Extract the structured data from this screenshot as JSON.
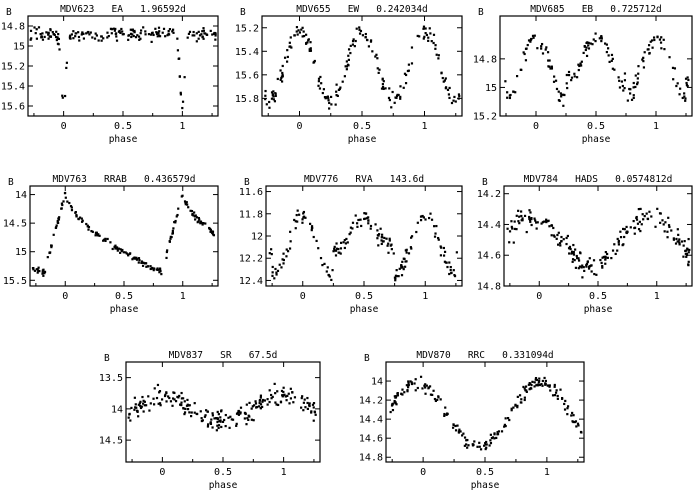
{
  "figure": {
    "xlabel": "phase",
    "ylabel": "B"
  },
  "chart_data": [
    {
      "type": "scatter",
      "title": "MDV623   EA   1.96592d",
      "ylabel": "B",
      "xlabel": "phase",
      "xlim": [
        -0.3,
        1.3
      ],
      "ylim": [
        15.7,
        14.7
      ],
      "yreversed": true,
      "xticks": [
        0,
        0.5,
        1
      ],
      "xtick_labels": [
        "0",
        "0.5",
        "1"
      ],
      "yticks": [
        14.8,
        15,
        15.2,
        15.4,
        15.6
      ],
      "ytick_labels": [
        "14.8",
        "15",
        "15.2",
        "15.4",
        "15.6"
      ],
      "light_curve": {
        "kind": "EA",
        "base": 14.88,
        "amp": 0.72,
        "scatter": 0.05,
        "n": 190
      }
    },
    {
      "type": "scatter",
      "title": "MDV655   EW   0.242034d",
      "ylabel": "B",
      "xlabel": "phase",
      "xlim": [
        -0.3,
        1.3
      ],
      "ylim": [
        15.95,
        15.1
      ],
      "yreversed": true,
      "xticks": [
        0,
        0.5,
        1
      ],
      "xtick_labels": [
        "0",
        "0.5",
        "1"
      ],
      "yticks": [
        15.2,
        15.4,
        15.6,
        15.8
      ],
      "ytick_labels": [
        "15.2",
        "15.4",
        "15.6",
        "15.8"
      ],
      "light_curve": {
        "kind": "EW",
        "base": 15.22,
        "amp": 0.6,
        "scatter": 0.06,
        "n": 200
      }
    },
    {
      "type": "scatter",
      "title": "MDV685   EB   0.725712d",
      "ylabel": "B",
      "xlabel": "phase",
      "xlim": [
        -0.3,
        1.3
      ],
      "ylim": [
        15.2,
        14.5
      ],
      "yreversed": true,
      "xticks": [
        0,
        0.5,
        1
      ],
      "xtick_labels": [
        "0",
        "0.5",
        "1"
      ],
      "yticks": [
        14.8,
        15,
        15.2
      ],
      "ytick_labels": [
        "14.8",
        "15",
        "15.2"
      ],
      "light_curve": {
        "kind": "EB",
        "base": 14.65,
        "amp": 0.42,
        "scatter": 0.05,
        "n": 170
      }
    },
    {
      "type": "scatter",
      "title": "MDV763   RRAB   0.436579d",
      "ylabel": "B",
      "xlabel": "phase",
      "xlim": [
        -0.3,
        1.3
      ],
      "ylim": [
        15.6,
        13.85
      ],
      "yreversed": true,
      "xticks": [
        0,
        0.5,
        1
      ],
      "xtick_labels": [
        "0",
        "0.5",
        "1"
      ],
      "yticks": [
        14,
        14.5,
        15,
        15.5
      ],
      "ytick_labels": [
        "14",
        "14.5",
        "15",
        "15.5"
      ],
      "light_curve": {
        "kind": "RRAB",
        "base": 13.97,
        "amp": 1.4,
        "scatter": 0.04,
        "n": 200
      }
    },
    {
      "type": "scatter",
      "title": "MDV776   RVA   143.6d",
      "ylabel": "B",
      "xlabel": "phase",
      "xlim": [
        -0.3,
        1.3
      ],
      "ylim": [
        12.45,
        11.55
      ],
      "yreversed": true,
      "xticks": [
        0,
        0.5,
        1
      ],
      "xtick_labels": [
        "0",
        "0.5",
        "1"
      ],
      "yticks": [
        11.6,
        11.8,
        12,
        12.2,
        12.4
      ],
      "ytick_labels": [
        "11.6",
        "11.8",
        "12",
        "12.2",
        "12.4"
      ],
      "light_curve": {
        "kind": "RVA",
        "base": 11.78,
        "amp": 0.52,
        "scatter": 0.06,
        "n": 190
      }
    },
    {
      "type": "scatter",
      "title": "MDV784   HADS   0.0574812d",
      "ylabel": "B",
      "xlabel": "phase",
      "xlim": [
        -0.3,
        1.3
      ],
      "ylim": [
        14.8,
        14.15
      ],
      "yreversed": true,
      "xticks": [
        0,
        0.5,
        1
      ],
      "xtick_labels": [
        "0",
        "0.5",
        "1"
      ],
      "yticks": [
        14.2,
        14.4,
        14.6,
        14.8
      ],
      "ytick_labels": [
        "14.2",
        "14.4",
        "14.6",
        "14.8"
      ],
      "light_curve": {
        "kind": "HADS",
        "base": 14.36,
        "amp": 0.3,
        "scatter": 0.06,
        "n": 210
      }
    },
    {
      "type": "scatter",
      "title": "MDV837   SR   67.5d",
      "ylabel": "B",
      "xlabel": "phase",
      "xlim": [
        -0.3,
        1.3
      ],
      "ylim": [
        14.85,
        13.25
      ],
      "yreversed": true,
      "xticks": [
        0,
        0.5,
        1
      ],
      "xtick_labels": [
        "0",
        "0.5",
        "1"
      ],
      "yticks": [
        13.5,
        14,
        14.5
      ],
      "ytick_labels": [
        "13.5",
        "14",
        "14.5"
      ],
      "light_curve": {
        "kind": "SR",
        "base": 13.8,
        "amp": 0.4,
        "scatter": 0.13,
        "n": 230
      }
    },
    {
      "type": "scatter",
      "title": "MDV870   RRC   0.331094d",
      "ylabel": "B",
      "xlabel": "phase",
      "xlim": [
        -0.3,
        1.3
      ],
      "ylim": [
        14.85,
        13.8
      ],
      "yreversed": true,
      "xticks": [
        0,
        0.5,
        1
      ],
      "xtick_labels": [
        "0",
        "0.5",
        "1"
      ],
      "yticks": [
        14,
        14.2,
        14.4,
        14.6,
        14.8
      ],
      "ytick_labels": [
        "14",
        "14.2",
        "14.4",
        "14.6",
        "14.8"
      ],
      "light_curve": {
        "kind": "RRC",
        "base": 14.02,
        "amp": 0.68,
        "scatter": 0.05,
        "n": 200
      }
    }
  ]
}
